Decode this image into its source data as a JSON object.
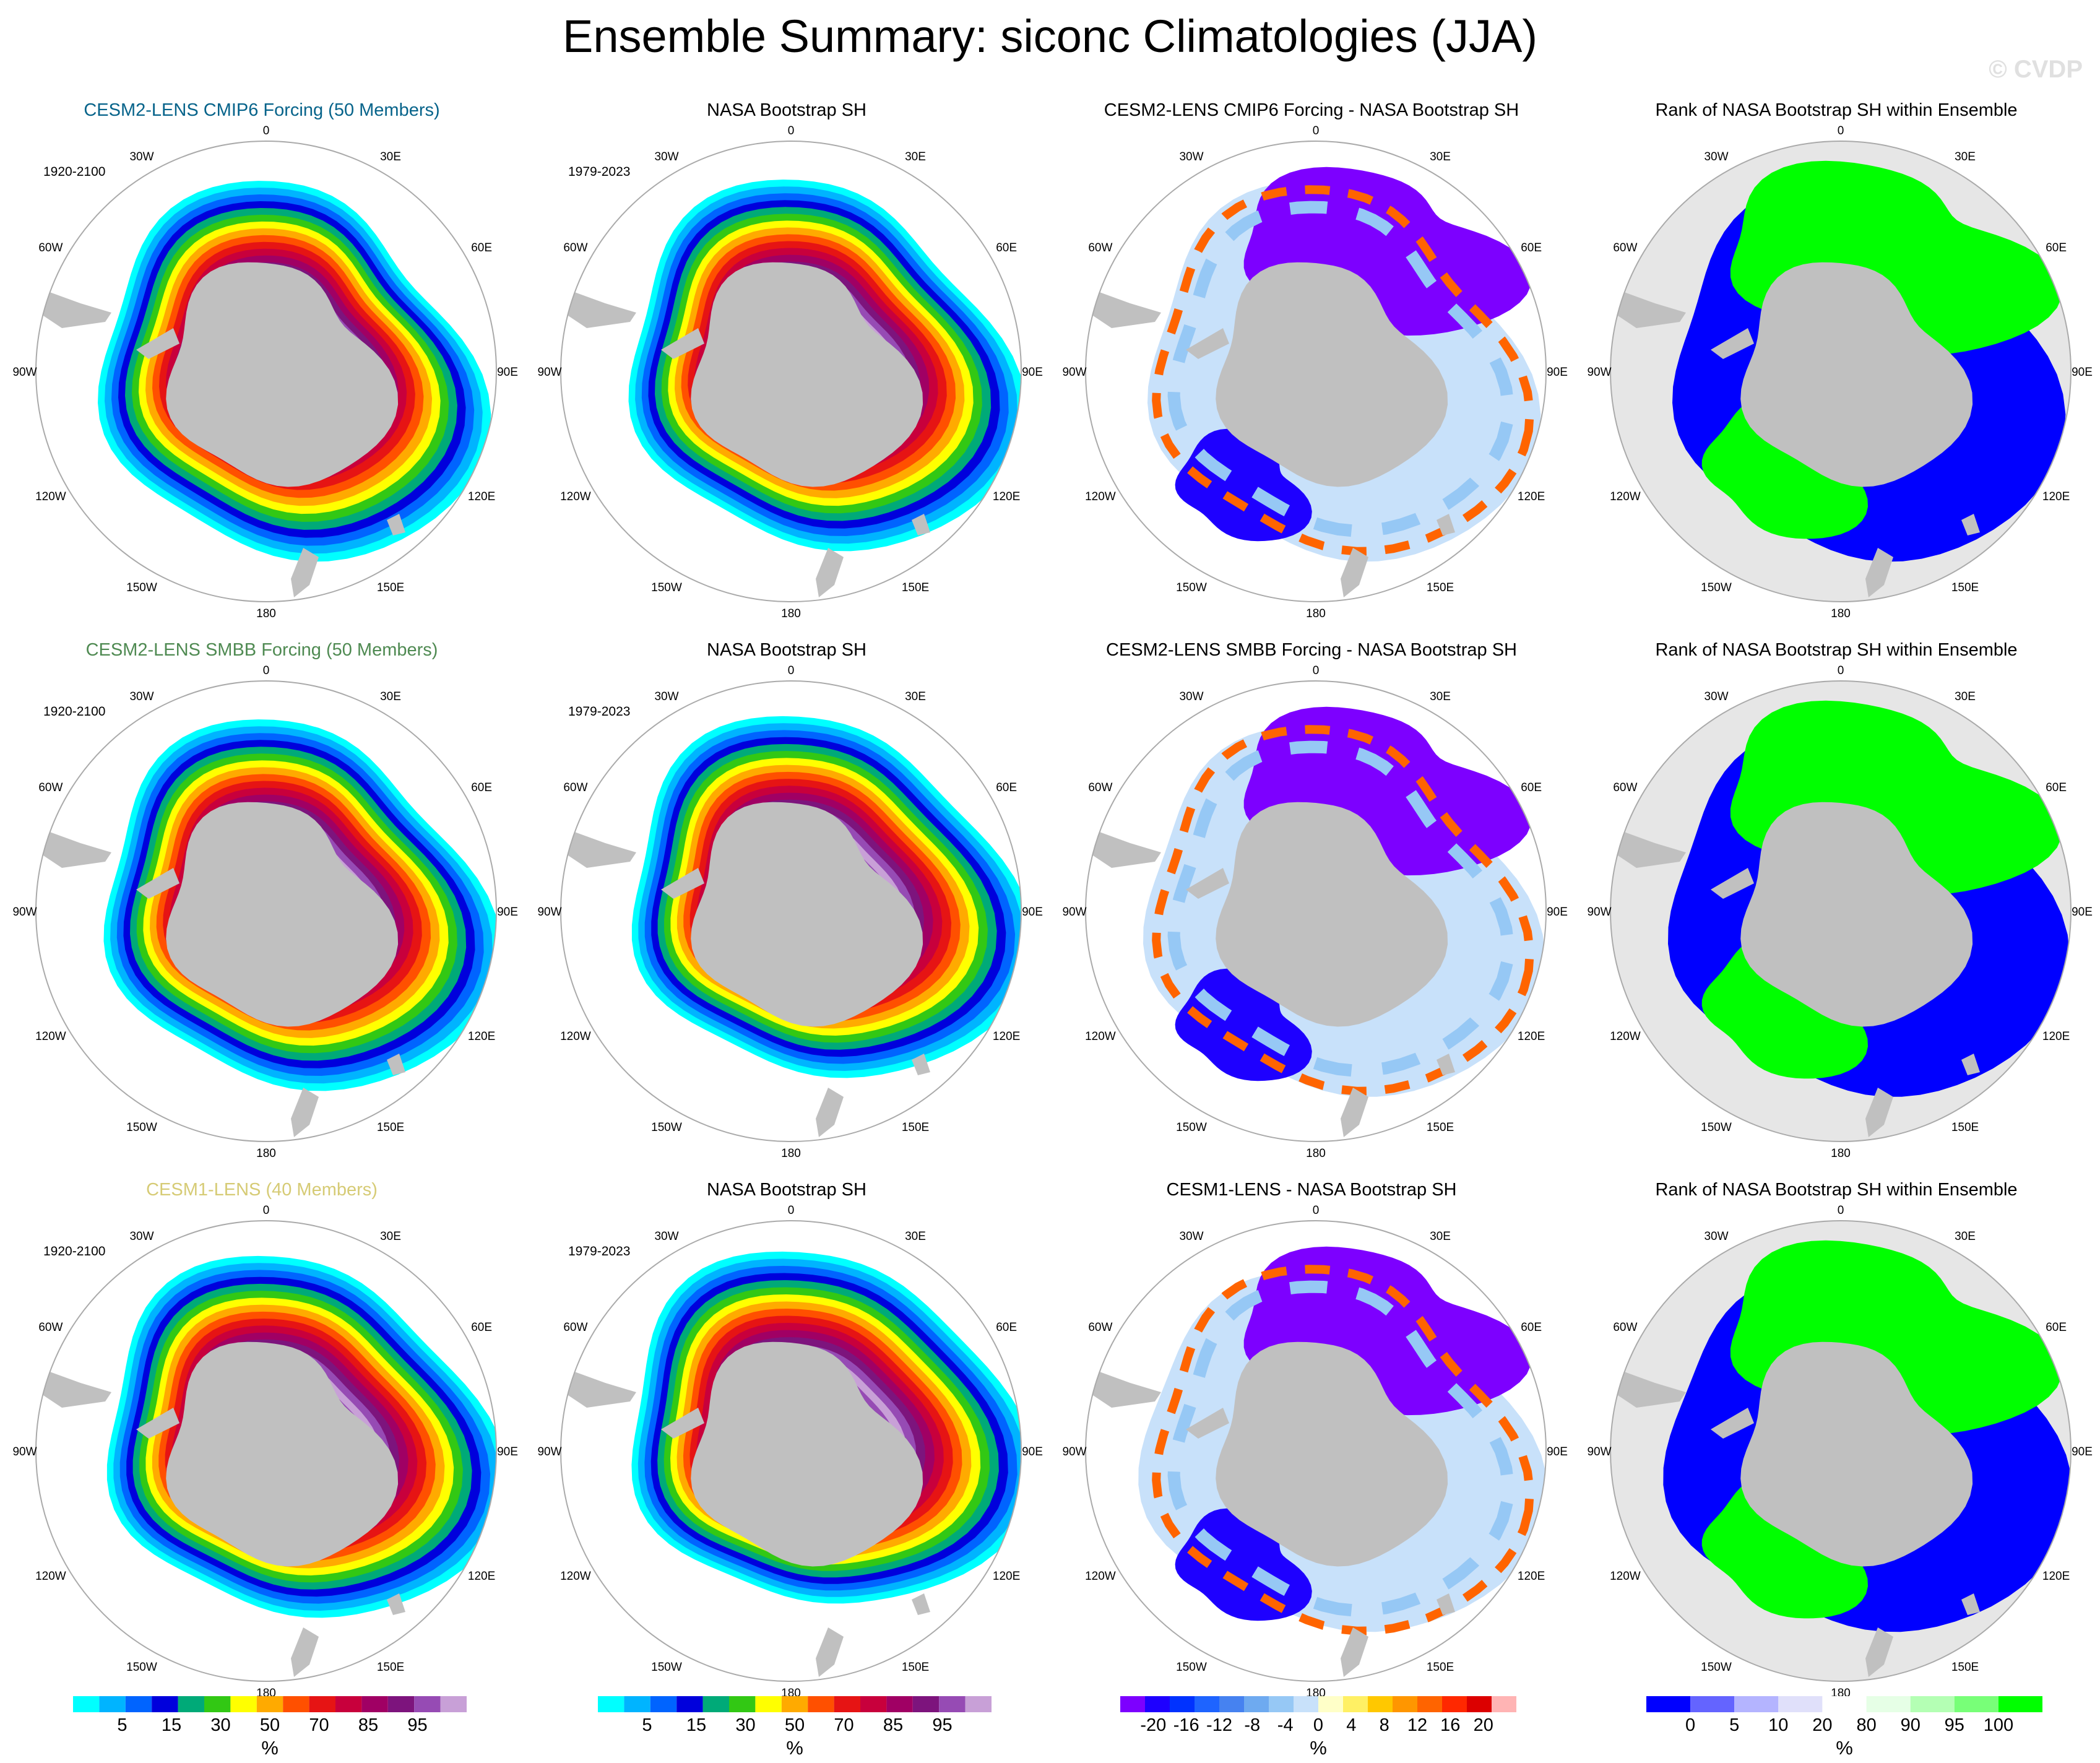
{
  "title": "Ensemble Summary: siconc Climatologies (JJA)",
  "watermark": "© CVDP",
  "lon_labels": [
    "0",
    "30E",
    "60E",
    "90E",
    "120E",
    "150E",
    "180",
    "150W",
    "120W",
    "90W",
    "60W",
    "30W"
  ],
  "colors": {
    "land": "#c0c0c0",
    "ocean_rank": "#e6e6e6",
    "circle": "#aaaaaa",
    "ens_row1": "#06638a",
    "ens_row2": "#4f8a52",
    "ens_row3": "#d6cb75"
  },
  "rows": [
    {
      "ensemble_title": "CESM2-LENS CMIP6 Forcing (50 Members)",
      "ensemble_period": "1920-2100",
      "obs_title": "NASA Bootstrap SH",
      "obs_period": "1979-2023",
      "diff_title": "CESM2-LENS CMIP6 Forcing - NASA Bootstrap SH",
      "rank_title": "Rank of NASA Bootstrap SH within Ensemble"
    },
    {
      "ensemble_title": "CESM2-LENS SMBB Forcing (50 Members)",
      "ensemble_period": "1920-2100",
      "obs_title": "NASA Bootstrap SH",
      "obs_period": "1979-2023",
      "diff_title": "CESM2-LENS SMBB Forcing - NASA Bootstrap SH",
      "rank_title": "Rank of NASA Bootstrap SH within Ensemble"
    },
    {
      "ensemble_title": "CESM1-LENS (40 Members)",
      "ensemble_period": "1920-2100",
      "obs_title": "NASA Bootstrap SH",
      "obs_period": "1979-2023",
      "diff_title": "CESM1-LENS - NASA Bootstrap SH",
      "rank_title": "Rank of NASA Bootstrap SH within Ensemble"
    }
  ],
  "chart_data": [
    {
      "type": "heatmap",
      "name": "sea ice concentration climatology",
      "units": "%",
      "colorbar": {
        "colors": [
          "#00ffff",
          "#00b4ff",
          "#0064ff",
          "#0000dc",
          "#00aa78",
          "#32c814",
          "#ffff00",
          "#ffaa00",
          "#ff5000",
          "#e61414",
          "#c8003c",
          "#a00064",
          "#7d147d",
          "#964bb4",
          "#c8a0d7"
        ],
        "tick_labels": [
          "5",
          "15",
          "30",
          "50",
          "70",
          "85",
          "95"
        ],
        "unit": "%"
      }
    },
    {
      "type": "heatmap",
      "name": "ensemble minus observations difference",
      "units": "%",
      "colorbar": {
        "colors": [
          "#7d00ff",
          "#1e00ff",
          "#0032ff",
          "#1e64ff",
          "#4682f0",
          "#6eaaf0",
          "#96c8f5",
          "#c8e1fa",
          "#ffffc8",
          "#fff064",
          "#ffc800",
          "#ff9600",
          "#ff6400",
          "#ff2800",
          "#dc0000",
          "#ffb4b4"
        ],
        "tick_labels": [
          "-20",
          "-16",
          "-12",
          "-8",
          "-4",
          "0",
          "4",
          "8",
          "12",
          "16",
          "20"
        ],
        "unit": "%"
      }
    },
    {
      "type": "heatmap",
      "name": "rank of observations within ensemble",
      "units": "%",
      "colorbar": {
        "colors": [
          "#0000ff",
          "#6464ff",
          "#b4b4ff",
          "#e0e0fa",
          "#ffffff",
          "#e6ffe6",
          "#b4ffb4",
          "#78ff78",
          "#00ff00"
        ],
        "tick_labels": [
          "0",
          "5",
          "10",
          "20",
          "80",
          "90",
          "95",
          "100"
        ],
        "unit": "%"
      }
    }
  ]
}
